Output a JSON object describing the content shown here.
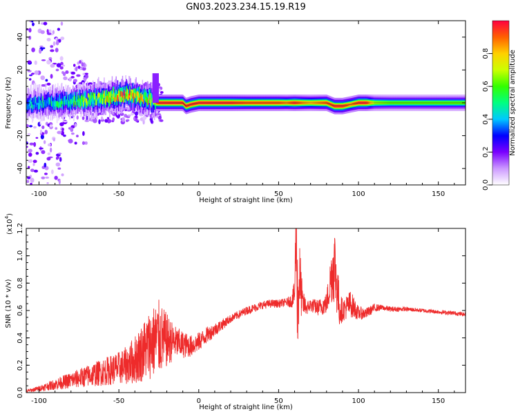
{
  "figure": {
    "title": "GN03.2023.234.15.19.R19"
  },
  "chart_data": [
    {
      "type": "heatmap",
      "xlabel": "Height of straight line (km)",
      "ylabel": "Frequency (Hz)",
      "xlim": [
        -108,
        167
      ],
      "ylim": [
        -50,
        50
      ],
      "xticks": [
        -100,
        -50,
        0,
        50,
        100,
        150
      ],
      "xtick_labels": [
        "-100",
        "-50",
        "0",
        "50",
        "100",
        "150"
      ],
      "yticks": [
        -40,
        -20,
        0,
        20,
        40
      ],
      "ytick_labels": [
        "-40",
        "-20",
        "0",
        "20",
        "40"
      ],
      "colorbar": {
        "label": "Normalized spectral amplitude",
        "range": [
          0,
          1
        ],
        "ticks": [
          0.0,
          0.2,
          0.4,
          0.6,
          0.8
        ],
        "tick_labels": [
          "0.0",
          "0.2",
          "0.4",
          "0.6",
          "0.8"
        ],
        "colors": [
          "#ffffff",
          "#cc99ff",
          "#7a00ff",
          "#0000ff",
          "#00c8ff",
          "#00ff80",
          "#33ff00",
          "#ccff00",
          "#ffd000",
          "#ff6000",
          "#ff0040"
        ]
      },
      "ridge": {
        "x": [
          -108,
          -95,
          -80,
          -70,
          -60,
          -50,
          -45,
          -40,
          -35,
          -28,
          -27,
          -25,
          -15,
          -10,
          -8,
          -5,
          0,
          10,
          20,
          30,
          40,
          50,
          55,
          60,
          65,
          70,
          75,
          80,
          85,
          90,
          95,
          100,
          105,
          110,
          120,
          130,
          140,
          150,
          160,
          167
        ],
        "y": [
          -1,
          0,
          1,
          2,
          3,
          4,
          5,
          4,
          3,
          2,
          0,
          0,
          0,
          0,
          -2,
          -1,
          0,
          0,
          0,
          0,
          0,
          0,
          0,
          0,
          0,
          0,
          0,
          0,
          -2,
          -2,
          -1,
          0,
          0,
          0,
          0,
          0,
          0,
          0,
          0,
          0
        ],
        "peak_amplitude": [
          0.4,
          0.45,
          0.5,
          0.6,
          0.7,
          0.8,
          0.85,
          0.8,
          0.75,
          0.7,
          0.9,
          1.0,
          1.0,
          1.0,
          1.0,
          1.0,
          1.0,
          1.0,
          1.0,
          0.95,
          0.95,
          0.95,
          0.9,
          1.0,
          0.9,
          0.85,
          0.9,
          0.95,
          1.0,
          1.0,
          0.9,
          1.0,
          1.0,
          0.7,
          0.65,
          0.65,
          0.65,
          0.65,
          0.65,
          0.65
        ]
      }
    },
    {
      "type": "line",
      "xlabel": "Height of straight line (km)",
      "ylabel": "SNR (10 * v/v)",
      "yscale_label": "(x10",
      "yscale_exponent": "4",
      "yscale_label_close": ")",
      "xlim": [
        -108,
        167
      ],
      "ylim": [
        0,
        1.2
      ],
      "xticks": [
        -100,
        -50,
        0,
        50,
        100,
        150
      ],
      "xtick_labels": [
        "-100",
        "-50",
        "0",
        "50",
        "100",
        "150"
      ],
      "yticks": [
        0.0,
        0.2,
        0.4,
        0.6,
        0.8,
        1.0,
        1.2
      ],
      "ytick_labels": [
        "0.0",
        "0.2",
        "0.4",
        "0.6",
        "0.8",
        "1.0",
        "1.2"
      ],
      "color": "#ee2b2b",
      "series": [
        {
          "x": [
            -108,
            -100,
            -90,
            -80,
            -70,
            -60,
            -50,
            -45,
            -40,
            -35,
            -30,
            -25,
            -20,
            -15,
            -10,
            -5,
            0,
            5,
            10,
            15,
            20,
            25,
            30,
            35,
            40,
            45,
            50,
            55,
            58,
            60,
            61,
            62,
            63,
            65,
            68,
            70,
            75,
            80,
            83,
            85,
            88,
            90,
            95,
            100,
            105,
            110,
            115,
            120,
            130,
            140,
            150,
            160,
            167
          ],
          "y": [
            0.01,
            0.03,
            0.06,
            0.09,
            0.12,
            0.15,
            0.18,
            0.2,
            0.24,
            0.3,
            0.36,
            0.4,
            0.38,
            0.37,
            0.35,
            0.34,
            0.37,
            0.42,
            0.46,
            0.5,
            0.54,
            0.57,
            0.6,
            0.62,
            0.64,
            0.65,
            0.65,
            0.66,
            0.67,
            0.72,
            1.2,
            0.6,
            0.85,
            0.65,
            0.62,
            0.64,
            0.62,
            0.65,
            0.85,
            0.95,
            0.62,
            0.6,
            0.65,
            0.58,
            0.58,
            0.62,
            0.62,
            0.61,
            0.61,
            0.6,
            0.59,
            0.58,
            0.57
          ],
          "amplitude": [
            0.01,
            0.02,
            0.04,
            0.06,
            0.08,
            0.1,
            0.12,
            0.14,
            0.18,
            0.22,
            0.26,
            0.28,
            0.2,
            0.12,
            0.1,
            0.08,
            0.07,
            0.06,
            0.05,
            0.04,
            0.03,
            0.03,
            0.03,
            0.03,
            0.03,
            0.03,
            0.03,
            0.03,
            0.05,
            0.1,
            0.35,
            0.4,
            0.3,
            0.1,
            0.05,
            0.05,
            0.06,
            0.08,
            0.2,
            0.3,
            0.15,
            0.08,
            0.1,
            0.05,
            0.04,
            0.03,
            0.02,
            0.02,
            0.015,
            0.015,
            0.015,
            0.015,
            0.015
          ]
        }
      ]
    }
  ]
}
